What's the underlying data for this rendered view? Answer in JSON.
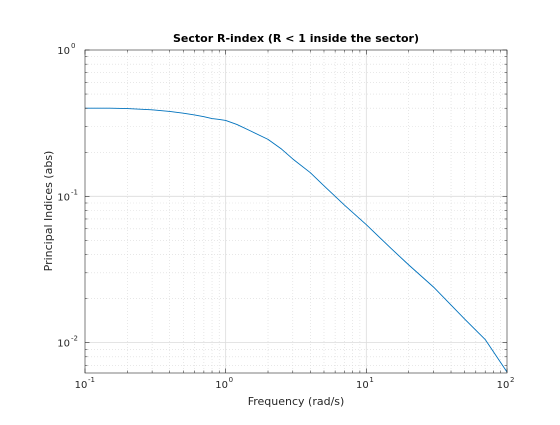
{
  "chart_data": {
    "type": "line",
    "title": "Sector R-index (R < 1 inside the sector)",
    "xlabel": "Frequency (rad/s)",
    "ylabel": "Principal Indices (abs)",
    "xscale": "log",
    "yscale": "log",
    "xlim": [
      0.1,
      100
    ],
    "ylim": [
      0.0062,
      1
    ],
    "x_ticks": [
      {
        "base": "10",
        "exp": "-1",
        "value": 0.1
      },
      {
        "base": "10",
        "exp": "0",
        "value": 1
      },
      {
        "base": "10",
        "exp": "1",
        "value": 10
      },
      {
        "base": "10",
        "exp": "2",
        "value": 100
      }
    ],
    "y_ticks": [
      {
        "base": "10",
        "exp": "-2",
        "value": 0.01
      },
      {
        "base": "10",
        "exp": "-1",
        "value": 0.1
      },
      {
        "base": "10",
        "exp": "0",
        "value": 1
      }
    ],
    "grid": true,
    "minor_grid": true,
    "series": [
      {
        "color": "#0072bd",
        "x": [
          0.1,
          0.15,
          0.2,
          0.3,
          0.4,
          0.5,
          0.6,
          0.7,
          0.8,
          0.9,
          1.0,
          1.2,
          1.5,
          2,
          2.5,
          3,
          4,
          5,
          7,
          10,
          15,
          20,
          30,
          50,
          70,
          100
        ],
        "y": [
          0.4,
          0.4,
          0.398,
          0.39,
          0.38,
          0.37,
          0.36,
          0.35,
          0.34,
          0.335,
          0.33,
          0.31,
          0.28,
          0.245,
          0.21,
          0.18,
          0.145,
          0.118,
          0.087,
          0.064,
          0.044,
          0.034,
          0.024,
          0.0145,
          0.0105,
          0.0063
        ]
      }
    ]
  }
}
